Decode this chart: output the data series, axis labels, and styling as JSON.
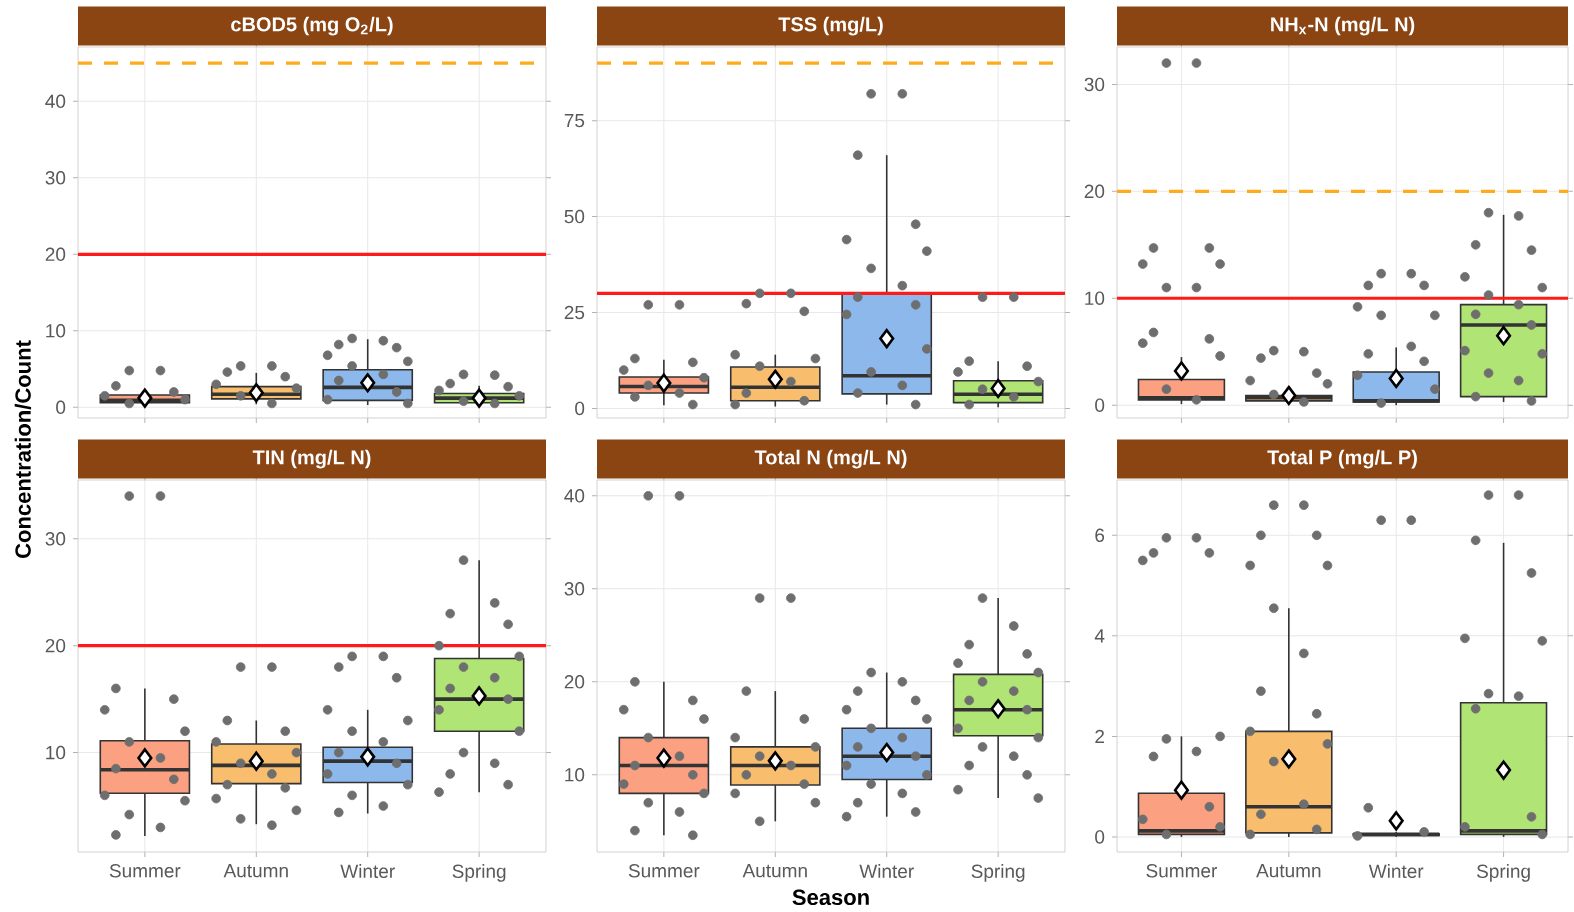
{
  "chart_data": [
    {
      "type": "box",
      "title": "cBOD5 (mg O$_{2}$/L)",
      "categories": [
        "Summer",
        "Autumn",
        "Winter",
        "Spring"
      ],
      "colors": [
        "#fca082",
        "#f9bd6e",
        "#8db8ec",
        "#b0e474"
      ],
      "grid": true,
      "tick_labels": "y",
      "ylim": [
        -1.4,
        47.1
      ],
      "yticks": [
        0,
        10,
        20,
        30,
        40
      ],
      "boxes": [
        {
          "low": 0.3,
          "q1": 0.6,
          "median": 0.9,
          "q3": 1.6,
          "high": 2.4,
          "mean": 1.2
        },
        {
          "low": 0.4,
          "q1": 1.1,
          "median": 1.7,
          "q3": 2.7,
          "high": 4.5,
          "mean": 1.9
        },
        {
          "low": 0.3,
          "q1": 0.9,
          "median": 2.6,
          "q3": 4.9,
          "high": 8.9,
          "mean": 3.2
        },
        {
          "low": 0.3,
          "q1": 0.6,
          "median": 1.2,
          "q3": 1.8,
          "high": 2.8,
          "mean": 1.2
        }
      ],
      "ref_lines": [
        {
          "axis": "y",
          "value": 20,
          "color": "#ff1a1a",
          "line_style": "solid"
        },
        {
          "axis": "y",
          "value": 45,
          "color": "#ffac1c",
          "line_style": "dashed"
        }
      ],
      "series": [
        {
          "type": "scatter",
          "marker": "circle",
          "color": "#6e6e6e",
          "x": [
            "Summer",
            "Summer",
            "Summer",
            "Summer",
            "Summer",
            "Summer",
            "Summer",
            "Autumn",
            "Autumn",
            "Autumn",
            "Autumn",
            "Autumn",
            "Autumn",
            "Autumn",
            "Autumn",
            "Winter",
            "Winter",
            "Winter",
            "Winter",
            "Winter",
            "Winter",
            "Winter",
            "Winter",
            "Winter",
            "Winter",
            "Winter",
            "Winter",
            "Spring",
            "Spring",
            "Spring",
            "Spring",
            "Spring",
            "Spring",
            "Spring",
            "Spring"
          ],
          "values": [
            4.8,
            4.8,
            2.8,
            2.0,
            1.5,
            1.0,
            0.5,
            5.4,
            5.4,
            4.6,
            4.0,
            3.0,
            2.5,
            1.5,
            0.5,
            9.0,
            8.7,
            8.2,
            7.8,
            6.8,
            6.0,
            5.4,
            4.3,
            3.5,
            2.0,
            1.0,
            0.5,
            4.3,
            4.2,
            3.1,
            2.7,
            2.2,
            1.5,
            0.8,
            0.5
          ]
        }
      ]
    },
    {
      "type": "box",
      "title": "TSS (mg/L)",
      "categories": [
        "Summer",
        "Autumn",
        "Winter",
        "Spring"
      ],
      "colors": [
        "#fca082",
        "#f9bd6e",
        "#8db8ec",
        "#b0e474"
      ],
      "grid": true,
      "tick_labels": "y",
      "ylim": [
        -2.5,
        94.2
      ],
      "yticks": [
        0,
        25,
        50,
        75
      ],
      "boxes": [
        {
          "low": 0.8,
          "q1": 4,
          "median": 5.7,
          "q3": 8.2,
          "high": 12.7,
          "mean": 6.6
        },
        {
          "low": 0.5,
          "q1": 2,
          "median": 5.5,
          "q3": 10.8,
          "high": 14,
          "mean": 7.6
        },
        {
          "low": 1,
          "q1": 3.8,
          "median": 8.5,
          "q3": 30,
          "high": 66,
          "mean": 18.2
        },
        {
          "low": 0.3,
          "q1": 1.5,
          "median": 3.7,
          "q3": 7.2,
          "high": 12.3,
          "mean": 5.2
        }
      ],
      "ref_lines": [
        {
          "axis": "y",
          "value": 30,
          "color": "#ff1a1a",
          "line_style": "solid"
        },
        {
          "axis": "y",
          "value": 90,
          "color": "#ffac1c",
          "line_style": "dashed"
        }
      ],
      "series": [
        {
          "type": "scatter",
          "marker": "circle",
          "color": "#6e6e6e",
          "x": [
            "Summer",
            "Summer",
            "Summer",
            "Summer",
            "Summer",
            "Summer",
            "Summer",
            "Summer",
            "Summer",
            "Summer",
            "Autumn",
            "Autumn",
            "Autumn",
            "Autumn",
            "Autumn",
            "Autumn",
            "Autumn",
            "Autumn",
            "Autumn",
            "Autumn",
            "Autumn",
            "Winter",
            "Winter",
            "Winter",
            "Winter",
            "Winter",
            "Winter",
            "Winter",
            "Winter",
            "Winter",
            "Winter",
            "Winter",
            "Winter",
            "Winter",
            "Winter",
            "Winter",
            "Winter",
            "Spring",
            "Spring",
            "Spring",
            "Spring",
            "Spring",
            "Spring",
            "Spring",
            "Spring",
            "Spring"
          ],
          "values": [
            27,
            27,
            13,
            12,
            10,
            8,
            6,
            4,
            3,
            1,
            30,
            30,
            27.3,
            25.3,
            14,
            13,
            11,
            7,
            4,
            2,
            1,
            82,
            82,
            66,
            48,
            44,
            41,
            36.5,
            32,
            29,
            27,
            24.5,
            15.5,
            9.5,
            6,
            4,
            1,
            29,
            29,
            12.3,
            11,
            9.5,
            7,
            5,
            3,
            1
          ]
        }
      ]
    },
    {
      "type": "box",
      "title": "NH$_{x}$-N (mg/L N)",
      "categories": [
        "Summer",
        "Autumn",
        "Winter",
        "Spring"
      ],
      "colors": [
        "#fca082",
        "#f9bd6e",
        "#8db8ec",
        "#b0e474"
      ],
      "grid": true,
      "tick_labels": "y",
      "ylim": [
        -1.2,
        33.5
      ],
      "yticks": [
        0,
        10,
        20,
        30
      ],
      "boxes": [
        {
          "low": 0.1,
          "q1": 0.5,
          "median": 0.7,
          "q3": 2.4,
          "high": 4.5,
          "mean": 3.2
        },
        {
          "low": 0.1,
          "q1": 0.4,
          "median": 0.7,
          "q3": 0.9,
          "high": 1.4,
          "mean": 0.9
        },
        {
          "low": 0,
          "q1": 0.3,
          "median": 0.4,
          "q3": 3.1,
          "high": 5.4,
          "mean": 2.5
        },
        {
          "low": 0.3,
          "q1": 0.8,
          "median": 7.5,
          "q3": 9.4,
          "high": 17.8,
          "mean": 6.5
        }
      ],
      "ref_lines": [
        {
          "axis": "y",
          "value": 10,
          "color": "#ff1a1a",
          "line_style": "solid"
        },
        {
          "axis": "y",
          "value": 20,
          "color": "#ffac1c",
          "line_style": "dashed"
        }
      ],
      "series": [
        {
          "type": "scatter",
          "marker": "circle",
          "color": "#6e6e6e",
          "x": [
            "Summer",
            "Summer",
            "Summer",
            "Summer",
            "Summer",
            "Summer",
            "Summer",
            "Summer",
            "Summer",
            "Summer",
            "Summer",
            "Summer",
            "Summer",
            "Summer",
            "Autumn",
            "Autumn",
            "Autumn",
            "Autumn",
            "Autumn",
            "Autumn",
            "Autumn",
            "Autumn",
            "Winter",
            "Winter",
            "Winter",
            "Winter",
            "Winter",
            "Winter",
            "Winter",
            "Winter",
            "Winter",
            "Winter",
            "Winter",
            "Winter",
            "Winter",
            "Spring",
            "Spring",
            "Spring",
            "Spring",
            "Spring",
            "Spring",
            "Spring",
            "Spring",
            "Spring",
            "Spring",
            "Spring",
            "Spring",
            "Spring",
            "Spring",
            "Spring",
            "Spring"
          ],
          "values": [
            32,
            32,
            14.7,
            14.7,
            13.2,
            13.2,
            11,
            11,
            6.8,
            6.2,
            5.8,
            4.6,
            1.5,
            0.5,
            5.1,
            5,
            4.4,
            3,
            2.3,
            2,
            1,
            0.3,
            12.3,
            12.3,
            11.2,
            11.2,
            9.2,
            8.4,
            8.4,
            5.5,
            4.8,
            4.1,
            2.8,
            1.5,
            0.2,
            18,
            17.7,
            15,
            14.5,
            12,
            11,
            10.3,
            9.4,
            8.5,
            7.5,
            5.1,
            4.8,
            3,
            2.3,
            0.8,
            0.4
          ]
        }
      ]
    },
    {
      "type": "box",
      "title": "TIN (mg/L N)",
      "ylabel": "Concentration/Count",
      "categories": [
        "Summer",
        "Autumn",
        "Winter",
        "Spring"
      ],
      "colors": [
        "#fca082",
        "#f9bd6e",
        "#8db8ec",
        "#b0e474"
      ],
      "grid": true,
      "ylim": [
        0.7,
        35.5
      ],
      "yticks": [
        10,
        20,
        30
      ],
      "boxes": [
        {
          "low": 2.2,
          "q1": 6.2,
          "median": 8.4,
          "q3": 11.1,
          "high": 16,
          "mean": 9.5
        },
        {
          "low": 3.3,
          "q1": 7.1,
          "median": 8.8,
          "q3": 10.8,
          "high": 13,
          "mean": 9.2
        },
        {
          "low": 4.3,
          "q1": 7.2,
          "median": 9.2,
          "q3": 10.5,
          "high": 14,
          "mean": 9.6
        },
        {
          "low": 6.3,
          "q1": 12,
          "median": 15,
          "q3": 18.8,
          "high": 28,
          "mean": 15.3
        }
      ],
      "ref_lines": [
        {
          "axis": "y",
          "value": 20,
          "color": "#ff1a1a",
          "line_style": "solid"
        }
      ],
      "series": [
        {
          "type": "scatter",
          "marker": "circle",
          "color": "#6e6e6e",
          "x": [
            "Summer",
            "Summer",
            "Summer",
            "Summer",
            "Summer",
            "Summer",
            "Summer",
            "Summer",
            "Summer",
            "Summer",
            "Summer",
            "Summer",
            "Summer",
            "Summer",
            "Summer",
            "Autumn",
            "Autumn",
            "Autumn",
            "Autumn",
            "Autumn",
            "Autumn",
            "Autumn",
            "Autumn",
            "Autumn",
            "Autumn",
            "Autumn",
            "Autumn",
            "Autumn",
            "Autumn",
            "Winter",
            "Winter",
            "Winter",
            "Winter",
            "Winter",
            "Winter",
            "Winter",
            "Winter",
            "Winter",
            "Winter",
            "Winter",
            "Winter",
            "Winter",
            "Winter",
            "Winter",
            "Spring",
            "Spring",
            "Spring",
            "Spring",
            "Spring",
            "Spring",
            "Spring",
            "Spring",
            "Spring",
            "Spring",
            "Spring",
            "Spring",
            "Spring",
            "Spring",
            "Spring",
            "Spring",
            "Spring"
          ],
          "values": [
            34,
            34,
            16,
            15,
            14,
            12,
            11,
            9.5,
            8.5,
            7.5,
            6,
            5.5,
            4.2,
            3,
            2.3,
            18,
            18,
            13,
            12,
            11,
            10,
            9,
            8,
            7,
            6.7,
            5.7,
            4.6,
            3.8,
            3.2,
            19,
            19,
            18,
            17,
            14,
            13,
            12,
            11,
            10,
            9,
            8,
            7,
            6,
            5,
            4.4,
            28,
            24,
            23,
            22,
            20,
            19,
            18,
            17,
            16,
            15,
            14,
            12,
            10,
            9,
            8,
            7,
            6.3
          ]
        }
      ]
    },
    {
      "type": "box",
      "title": "Total N (mg/L N)",
      "xlabel": "Season",
      "categories": [
        "Summer",
        "Autumn",
        "Winter",
        "Spring"
      ],
      "colors": [
        "#fca082",
        "#f9bd6e",
        "#8db8ec",
        "#b0e474"
      ],
      "grid": true,
      "ylim": [
        1.7,
        41.7
      ],
      "yticks": [
        10,
        20,
        30,
        40
      ],
      "boxes": [
        {
          "low": 3.5,
          "q1": 8,
          "median": 11,
          "q3": 14,
          "high": 20,
          "mean": 11.8
        },
        {
          "low": 5,
          "q1": 8.9,
          "median": 11,
          "q3": 13,
          "high": 19,
          "mean": 11.5
        },
        {
          "low": 5.5,
          "q1": 9.5,
          "median": 12,
          "q3": 15,
          "high": 21,
          "mean": 12.4
        },
        {
          "low": 7.5,
          "q1": 14.2,
          "median": 17,
          "q3": 20.8,
          "high": 29,
          "mean": 17.1
        }
      ],
      "series": [
        {
          "type": "scatter",
          "marker": "circle",
          "color": "#6e6e6e",
          "x": [
            "Summer",
            "Summer",
            "Summer",
            "Summer",
            "Summer",
            "Summer",
            "Summer",
            "Summer",
            "Summer",
            "Summer",
            "Summer",
            "Summer",
            "Summer",
            "Summer",
            "Summer",
            "Summer",
            "Autumn",
            "Autumn",
            "Autumn",
            "Autumn",
            "Autumn",
            "Autumn",
            "Autumn",
            "Autumn",
            "Autumn",
            "Autumn",
            "Autumn",
            "Autumn",
            "Autumn",
            "Winter",
            "Winter",
            "Winter",
            "Winter",
            "Winter",
            "Winter",
            "Winter",
            "Winter",
            "Winter",
            "Winter",
            "Winter",
            "Winter",
            "Winter",
            "Winter",
            "Winter",
            "Winter",
            "Winter",
            "Spring",
            "Spring",
            "Spring",
            "Spring",
            "Spring",
            "Spring",
            "Spring",
            "Spring",
            "Spring",
            "Spring",
            "Spring",
            "Spring",
            "Spring",
            "Spring",
            "Spring",
            "Spring",
            "Spring",
            "Spring"
          ],
          "values": [
            40,
            40,
            20,
            18,
            17,
            16,
            14,
            12,
            11,
            10,
            9,
            8,
            7,
            6,
            4,
            3.5,
            29,
            29,
            19,
            16,
            14,
            13,
            12,
            11,
            10,
            9,
            8,
            7,
            5,
            21,
            20,
            19,
            18,
            17,
            16,
            15,
            14,
            13,
            12,
            11,
            10,
            9,
            8,
            7,
            6,
            5.5,
            29,
            26,
            24,
            23,
            22,
            21,
            20,
            19,
            18,
            17,
            15,
            14,
            13,
            12,
            11,
            10,
            8.4,
            7.5
          ]
        }
      ]
    },
    {
      "type": "box",
      "title": "Total P (mg/L P)",
      "categories": [
        "Summer",
        "Autumn",
        "Winter",
        "Spring"
      ],
      "colors": [
        "#fca082",
        "#f9bd6e",
        "#8db8ec",
        "#b0e474"
      ],
      "grid": true,
      "ylim": [
        -0.3,
        7.1
      ],
      "yticks": [
        0,
        2,
        4,
        6
      ],
      "boxes": [
        {
          "low": 0,
          "q1": 0.05,
          "median": 0.12,
          "q3": 0.87,
          "high": 2,
          "mean": 0.93
        },
        {
          "low": 0,
          "q1": 0.08,
          "median": 0.6,
          "q3": 2.1,
          "high": 4.55,
          "mean": 1.55
        },
        {
          "low": 0,
          "q1": 0.03,
          "median": 0.05,
          "q3": 0.06,
          "high": 0.1,
          "mean": 0.32
        },
        {
          "low": 0,
          "q1": 0.05,
          "median": 0.12,
          "q3": 2.67,
          "high": 5.85,
          "mean": 1.33
        }
      ],
      "series": [
        {
          "type": "scatter",
          "marker": "circle",
          "color": "#6e6e6e",
          "x": [
            "Summer",
            "Summer",
            "Summer",
            "Summer",
            "Summer",
            "Summer",
            "Summer",
            "Summer",
            "Summer",
            "Summer",
            "Summer",
            "Summer",
            "Summer",
            "Autumn",
            "Autumn",
            "Autumn",
            "Autumn",
            "Autumn",
            "Autumn",
            "Autumn",
            "Autumn",
            "Autumn",
            "Autumn",
            "Autumn",
            "Autumn",
            "Autumn",
            "Autumn",
            "Autumn",
            "Autumn",
            "Autumn",
            "Winter",
            "Winter",
            "Winter",
            "Winter",
            "Winter",
            "Spring",
            "Spring",
            "Spring",
            "Spring",
            "Spring",
            "Spring",
            "Spring",
            "Spring",
            "Spring",
            "Spring",
            "Spring",
            "Spring"
          ],
          "values": [
            5.95,
            5.95,
            5.65,
            5.65,
            5.5,
            2,
            1.95,
            1.7,
            1.6,
            0.6,
            0.35,
            0.2,
            0.05,
            6.6,
            6.6,
            6,
            6,
            5.4,
            5.4,
            4.55,
            3.65,
            2.9,
            2.45,
            2.1,
            1.85,
            1.5,
            0.65,
            0.45,
            0.15,
            0.05,
            6.3,
            6.3,
            0.58,
            0.1,
            0.02,
            6.8,
            6.8,
            5.9,
            5.25,
            3.95,
            3.9,
            2.85,
            2.8,
            2.55,
            0.4,
            0.2,
            0.05
          ]
        }
      ]
    }
  ]
}
